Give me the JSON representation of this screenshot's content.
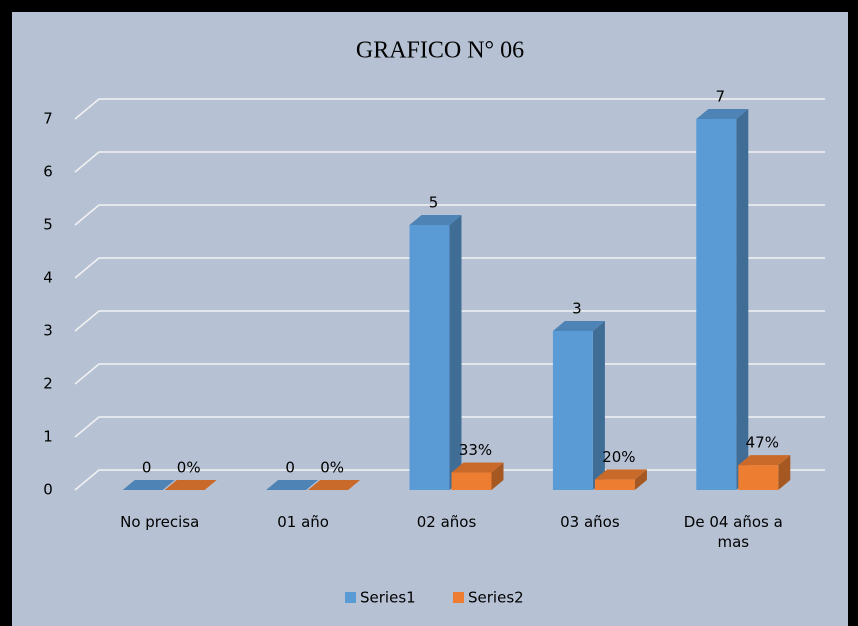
{
  "chart_data": {
    "type": "bar3d",
    "title": "GRAFICO N° 06",
    "categories": [
      "No precisa",
      "01 año",
      "02 años",
      "03 años",
      "De 04 años a mas"
    ],
    "series": [
      {
        "name": "Series1",
        "color": "#5b9bd5",
        "values": [
          0,
          0,
          5,
          3,
          7
        ],
        "value_labels": [
          "0",
          "0",
          "5",
          "3",
          "7"
        ]
      },
      {
        "name": "Series2",
        "color": "#ed7d31",
        "values": [
          0,
          0,
          0.33,
          0.2,
          0.47
        ],
        "value_labels": [
          "0%",
          "0%",
          "33%",
          "20%",
          "47%"
        ]
      }
    ],
    "ylim": [
      0,
      7
    ],
    "yticks": [
      0,
      1,
      2,
      3,
      4,
      5,
      6,
      7
    ],
    "grid": true,
    "legend": "bottom"
  }
}
